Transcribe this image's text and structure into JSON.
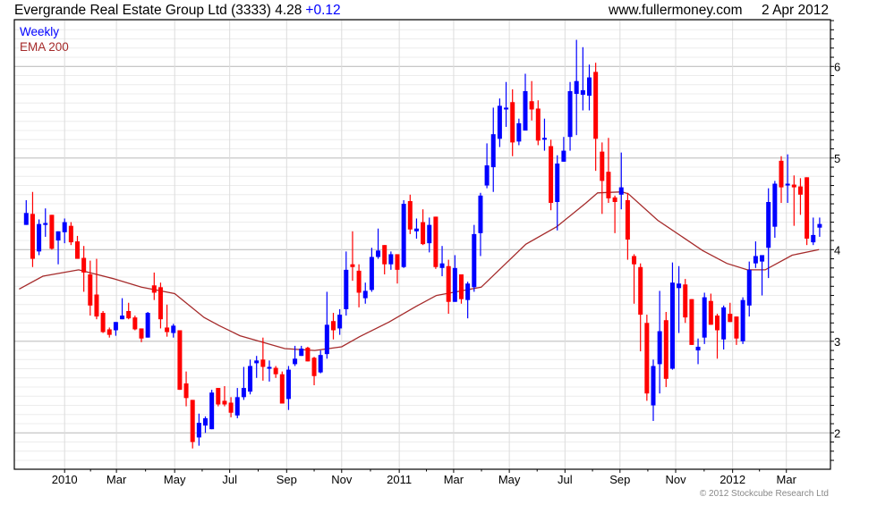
{
  "header": {
    "title": "Evergrande Real Estate Group Ltd (3333) 4.28",
    "change": "+0.12",
    "site": "www.fullermoney.com",
    "date": "2 Apr 2012"
  },
  "legend": {
    "period": "Weekly",
    "indicator": "EMA 200"
  },
  "copyright": "© 2012 Stockcube Research Ltd",
  "colors": {
    "up": "#0000ff",
    "down": "#ff0000",
    "ema": "#a52a2a",
    "change": "#0000ff"
  },
  "chart_data": {
    "type": "candlestick",
    "title": "Evergrande Real Estate Group Ltd (3333)",
    "ylim": [
      1.6,
      6.5
    ],
    "y_ticks": [
      "2",
      "3",
      "4",
      "5",
      "6"
    ],
    "y_tick_values": [
      2,
      3,
      4,
      5,
      6
    ],
    "x_ticks": [
      {
        "label": "2010",
        "week": 6.0
      },
      {
        "label": "Mar",
        "week": 14.1
      },
      {
        "label": "May",
        "week": 23.2
      },
      {
        "label": "Jul",
        "week": 31.8
      },
      {
        "label": "Sep",
        "week": 40.7
      },
      {
        "label": "Nov",
        "week": 49.3
      },
      {
        "label": "2011",
        "week": 58.3
      },
      {
        "label": "Mar",
        "week": 66.8
      },
      {
        "label": "May",
        "week": 75.5
      },
      {
        "label": "Jul",
        "week": 84.2
      },
      {
        "label": "Sep",
        "week": 92.8
      },
      {
        "label": "Nov",
        "week": 101.5
      },
      {
        "label": "2012",
        "week": 110.4
      },
      {
        "label": "Mar",
        "week": 118.8
      }
    ],
    "ohlc_fields": [
      "open",
      "high",
      "low",
      "close"
    ],
    "candles": [
      [
        4.27,
        4.54,
        4.27,
        4.4
      ],
      [
        4.39,
        4.63,
        3.81,
        3.9
      ],
      [
        3.98,
        4.33,
        3.94,
        4.28
      ],
      [
        4.27,
        4.45,
        4.14,
        4.29
      ],
      [
        4.38,
        4.38,
        4.0,
        4.01
      ],
      [
        4.1,
        4.2,
        3.84,
        4.2
      ],
      [
        4.19,
        4.34,
        4.07,
        4.3
      ],
      [
        4.26,
        4.3,
        4.05,
        4.08
      ],
      [
        4.09,
        4.15,
        3.9,
        3.9
      ],
      [
        3.91,
        4.04,
        3.54,
        3.75
      ],
      [
        3.73,
        3.88,
        3.28,
        3.39
      ],
      [
        3.51,
        3.9,
        3.24,
        3.27
      ],
      [
        3.31,
        3.33,
        3.09,
        3.1
      ],
      [
        3.13,
        3.15,
        3.04,
        3.07
      ],
      [
        3.12,
        3.21,
        3.06,
        3.21
      ],
      [
        3.24,
        3.47,
        3.24,
        3.28
      ],
      [
        3.33,
        3.42,
        3.24,
        3.25
      ],
      [
        3.26,
        3.28,
        3.12,
        3.13
      ],
      [
        3.14,
        3.14,
        2.99,
        3.03
      ],
      [
        3.04,
        3.32,
        3.04,
        3.31
      ],
      [
        3.61,
        3.75,
        3.45,
        3.53
      ],
      [
        3.59,
        3.64,
        3.14,
        3.24
      ],
      [
        3.15,
        3.4,
        3.05,
        3.1
      ],
      [
        3.09,
        3.19,
        3.04,
        3.17
      ],
      [
        3.12,
        3.12,
        2.47,
        2.47
      ],
      [
        2.54,
        2.67,
        2.29,
        2.38
      ],
      [
        2.36,
        2.36,
        1.83,
        1.9
      ],
      [
        1.95,
        2.21,
        1.86,
        2.11
      ],
      [
        2.08,
        2.18,
        2.0,
        2.16
      ],
      [
        2.04,
        2.47,
        2.04,
        2.44
      ],
      [
        2.49,
        2.49,
        2.29,
        2.31
      ],
      [
        2.35,
        2.51,
        2.29,
        2.31
      ],
      [
        2.33,
        2.39,
        2.17,
        2.22
      ],
      [
        2.19,
        2.49,
        2.16,
        2.39
      ],
      [
        2.39,
        2.72,
        2.36,
        2.49
      ],
      [
        2.45,
        2.8,
        2.42,
        2.73
      ],
      [
        2.76,
        2.84,
        2.6,
        2.79
      ],
      [
        2.8,
        3.04,
        2.57,
        2.72
      ],
      [
        2.7,
        2.79,
        2.56,
        2.72
      ],
      [
        2.71,
        2.73,
        2.6,
        2.64
      ],
      [
        2.64,
        2.67,
        2.32,
        2.32
      ],
      [
        2.37,
        2.73,
        2.25,
        2.69
      ],
      [
        2.75,
        2.95,
        2.73,
        2.81
      ],
      [
        2.84,
        2.95,
        2.84,
        2.92
      ],
      [
        2.93,
        2.94,
        2.78,
        2.78
      ],
      [
        2.82,
        2.83,
        2.52,
        2.62
      ],
      [
        2.66,
        2.9,
        2.65,
        2.85
      ],
      [
        2.86,
        3.54,
        2.81,
        3.18
      ],
      [
        3.22,
        3.31,
        3.02,
        3.12
      ],
      [
        3.14,
        3.35,
        3.07,
        3.29
      ],
      [
        3.35,
        3.98,
        3.28,
        3.78
      ],
      [
        3.84,
        4.2,
        3.66,
        3.81
      ],
      [
        3.77,
        3.84,
        3.37,
        3.53
      ],
      [
        3.47,
        3.64,
        3.41,
        3.55
      ],
      [
        3.56,
        4.02,
        3.54,
        3.92
      ],
      [
        3.92,
        4.23,
        3.9,
        3.99
      ],
      [
        4.05,
        4.05,
        3.73,
        3.84
      ],
      [
        3.84,
        3.98,
        3.78,
        3.95
      ],
      [
        3.95,
        3.95,
        3.63,
        3.78
      ],
      [
        3.81,
        4.54,
        3.8,
        4.5
      ],
      [
        4.53,
        4.6,
        4.17,
        4.22
      ],
      [
        4.2,
        4.34,
        4.12,
        4.23
      ],
      [
        4.3,
        4.44,
        4.05,
        4.06
      ],
      [
        4.07,
        4.35,
        3.97,
        4.27
      ],
      [
        4.36,
        4.36,
        3.79,
        3.81
      ],
      [
        3.8,
        4.04,
        3.71,
        3.85
      ],
      [
        3.82,
        3.89,
        3.3,
        3.43
      ],
      [
        3.43,
        3.94,
        3.43,
        3.8
      ],
      [
        3.73,
        3.73,
        3.41,
        3.46
      ],
      [
        3.45,
        3.65,
        3.25,
        3.63
      ],
      [
        3.59,
        4.27,
        3.54,
        4.17
      ],
      [
        4.18,
        4.62,
        3.93,
        4.59
      ],
      [
        4.7,
        5.16,
        4.67,
        4.92
      ],
      [
        4.9,
        5.55,
        4.63,
        5.26
      ],
      [
        5.21,
        5.65,
        5.12,
        5.57
      ],
      [
        5.53,
        5.83,
        5.34,
        5.55
      ],
      [
        5.61,
        5.75,
        5.02,
        5.17
      ],
      [
        5.18,
        5.43,
        5.14,
        5.38
      ],
      [
        5.3,
        5.92,
        5.3,
        5.73
      ],
      [
        5.62,
        5.84,
        5.41,
        5.53
      ],
      [
        5.54,
        5.63,
        5.14,
        5.19
      ],
      [
        5.2,
        5.43,
        5.08,
        5.22
      ],
      [
        5.13,
        5.2,
        4.43,
        4.51
      ],
      [
        4.52,
        5.03,
        4.21,
        4.94
      ],
      [
        4.96,
        5.23,
        4.96,
        5.08
      ],
      [
        5.23,
        5.83,
        5.08,
        5.73
      ],
      [
        5.7,
        6.29,
        5.25,
        5.84
      ],
      [
        5.69,
        6.21,
        5.52,
        5.74
      ],
      [
        5.68,
        6.02,
        5.52,
        5.88
      ],
      [
        5.94,
        6.04,
        4.86,
        5.21
      ],
      [
        5.07,
        5.17,
        4.39,
        4.75
      ],
      [
        4.85,
        5.22,
        4.51,
        4.56
      ],
      [
        4.57,
        4.59,
        4.18,
        4.52
      ],
      [
        4.6,
        5.06,
        4.44,
        4.68
      ],
      [
        4.54,
        4.62,
        3.89,
        4.11
      ],
      [
        3.93,
        3.95,
        3.41,
        3.84
      ],
      [
        3.81,
        3.85,
        2.89,
        3.29
      ],
      [
        3.2,
        3.29,
        2.35,
        2.43
      ],
      [
        2.3,
        2.8,
        2.13,
        2.73
      ],
      [
        2.75,
        3.55,
        2.43,
        3.11
      ],
      [
        3.23,
        3.32,
        2.5,
        2.59
      ],
      [
        2.7,
        3.86,
        2.69,
        3.64
      ],
      [
        3.58,
        3.82,
        3.09,
        3.63
      ],
      [
        3.62,
        3.68,
        3.2,
        3.26
      ],
      [
        3.46,
        3.46,
        2.96,
        2.96
      ],
      [
        2.9,
        3.03,
        2.75,
        2.94
      ],
      [
        3.04,
        3.53,
        2.97,
        3.48
      ],
      [
        3.44,
        3.52,
        3.18,
        3.18
      ],
      [
        3.28,
        3.3,
        2.81,
        3.12
      ],
      [
        3.02,
        3.39,
        2.91,
        3.37
      ],
      [
        3.3,
        3.42,
        3.21,
        3.21
      ],
      [
        3.27,
        3.27,
        2.96,
        3.03
      ],
      [
        3.0,
        3.48,
        2.97,
        3.45
      ],
      [
        3.39,
        3.87,
        3.27,
        3.78
      ],
      [
        3.85,
        4.09,
        3.8,
        3.93
      ],
      [
        3.87,
        3.94,
        3.5,
        3.94
      ],
      [
        4.02,
        4.67,
        3.69,
        4.52
      ],
      [
        4.25,
        4.75,
        4.13,
        4.72
      ],
      [
        4.97,
        5.02,
        4.51,
        4.68
      ],
      [
        4.7,
        5.04,
        4.51,
        4.72
      ],
      [
        4.71,
        4.81,
        4.26,
        4.68
      ],
      [
        4.69,
        4.78,
        4.38,
        4.6
      ],
      [
        4.79,
        4.79,
        4.05,
        4.12
      ],
      [
        4.08,
        4.35,
        4.05,
        4.16
      ],
      [
        4.24,
        4.35,
        4.14,
        4.28
      ]
    ],
    "ema_200": [
      [
        -1.1,
        3.57
      ],
      [
        2.6,
        3.71
      ],
      [
        8.2,
        3.78
      ],
      [
        13.8,
        3.68
      ],
      [
        18.0,
        3.59
      ],
      [
        23.2,
        3.52
      ],
      [
        27.8,
        3.26
      ],
      [
        30.2,
        3.17
      ],
      [
        33.4,
        3.06
      ],
      [
        40.4,
        2.92
      ],
      [
        45.1,
        2.9
      ],
      [
        49.3,
        2.94
      ],
      [
        52.1,
        3.05
      ],
      [
        56.7,
        3.21
      ],
      [
        60.9,
        3.38
      ],
      [
        64.1,
        3.5
      ],
      [
        71.1,
        3.59
      ],
      [
        78.1,
        4.06
      ],
      [
        82.9,
        4.25
      ],
      [
        87.5,
        4.51
      ],
      [
        89.3,
        4.62
      ],
      [
        93.1,
        4.63
      ],
      [
        94.1,
        4.61
      ],
      [
        98.7,
        4.32
      ],
      [
        105.7,
        3.99
      ],
      [
        109.5,
        3.85
      ],
      [
        112.7,
        3.78
      ],
      [
        115.5,
        3.78
      ],
      [
        119.7,
        3.94
      ],
      [
        123.9,
        4.0
      ]
    ]
  }
}
